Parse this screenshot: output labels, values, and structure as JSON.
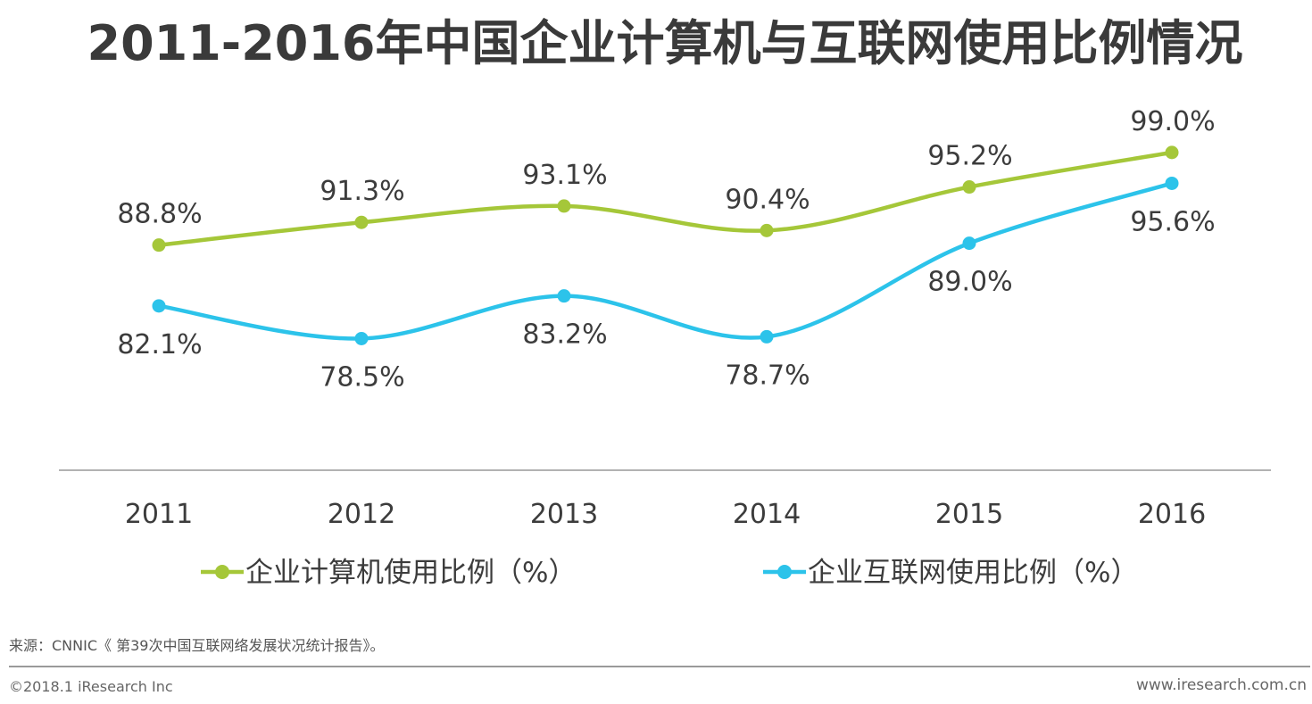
{
  "chart_data": {
    "type": "line",
    "title": "2011-2016年中国企业计算机与互联网使用比例情况",
    "categories": [
      "2011",
      "2012",
      "2013",
      "2014",
      "2015",
      "2016"
    ],
    "series": [
      {
        "name": "企业计算机使用比例（%）",
        "color": "#a5c739",
        "values": [
          88.8,
          91.3,
          93.1,
          90.4,
          95.2,
          99.0
        ],
        "labels": [
          "88.8%",
          "91.3%",
          "93.1%",
          "90.4%",
          "95.2%",
          "99.0%"
        ],
        "label_positions": [
          "above",
          "above",
          "above",
          "above",
          "above",
          "above"
        ]
      },
      {
        "name": "企业互联网使用比例（%）",
        "color": "#2cc3ea",
        "values": [
          82.1,
          78.5,
          83.2,
          78.7,
          89.0,
          95.6
        ],
        "labels": [
          "82.1%",
          "78.5%",
          "83.2%",
          "78.7%",
          "89.0%",
          "95.6%"
        ],
        "label_positions": [
          "below",
          "below",
          "below",
          "below",
          "below",
          "below"
        ]
      }
    ],
    "xlabel": "",
    "ylabel": "",
    "ylim": [
      64,
      104
    ],
    "grid": false,
    "smooth": true,
    "legend_position": "bottom"
  },
  "source": "来源：CNNIC《 第39次中国互联网络发展状况统计报告》。",
  "copyright": "©2018.1 iResearch Inc",
  "website": "www.iresearch.com.cn"
}
